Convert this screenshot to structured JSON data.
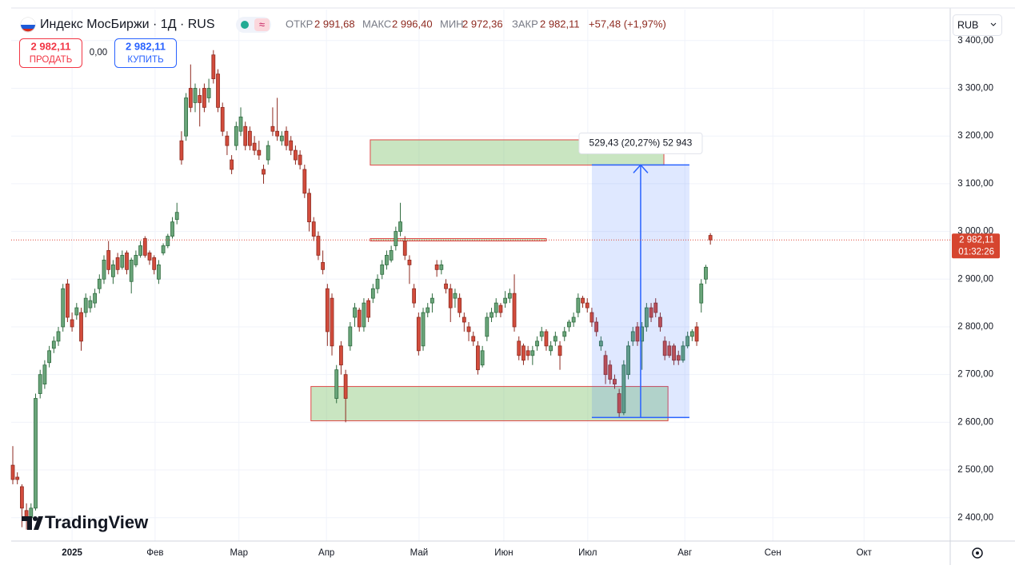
{
  "header": {
    "symbol": "Индекс МосБиржи · 1Д · RUS",
    "open_label": "ОТКР",
    "open": "2 991,68",
    "high_label": "МАКС",
    "high": "2 996,40",
    "low_label": "МИН",
    "low": "2 972,36",
    "close_label": "ЗАКР",
    "close": "2 982,11",
    "change": "+57,48 (+1,97%)"
  },
  "trade": {
    "sell_price": "2 982,11",
    "sell": "ПРОДАТЬ",
    "spread": "0,00",
    "buy_price": "2 982,11",
    "buy": "КУПИТЬ"
  },
  "currency": "RUB",
  "logo": "TradingView",
  "chart_data": {
    "type": "candlestick",
    "up_color": "#6aa57a",
    "up_border": "#2f6b3f",
    "down_color": "#d24c3c",
    "down_border": "#8e2a20",
    "ohlc": [
      [
        2510,
        2550,
        2470,
        2480
      ],
      [
        2485,
        2495,
        2470,
        2480
      ],
      [
        2465,
        2470,
        2380,
        2420
      ],
      [
        2415,
        2430,
        2375,
        2395
      ],
      [
        2400,
        2430,
        2390,
        2420
      ],
      [
        2420,
        2660,
        2415,
        2650
      ],
      [
        2660,
        2710,
        2650,
        2700
      ],
      [
        2680,
        2730,
        2670,
        2720
      ],
      [
        2725,
        2760,
        2715,
        2750
      ],
      [
        2755,
        2780,
        2745,
        2770
      ],
      [
        2770,
        2800,
        2760,
        2790
      ],
      [
        2800,
        2890,
        2790,
        2880
      ],
      [
        2890,
        2900,
        2810,
        2820
      ],
      [
        2815,
        2830,
        2790,
        2800
      ],
      [
        2825,
        2850,
        2815,
        2840
      ],
      [
        2830,
        2840,
        2750,
        2770
      ],
      [
        2830,
        2870,
        2820,
        2860
      ],
      [
        2840,
        2865,
        2830,
        2855
      ],
      [
        2850,
        2880,
        2840,
        2870
      ],
      [
        2880,
        2910,
        2870,
        2900
      ],
      [
        2900,
        2950,
        2890,
        2940
      ],
      [
        2960,
        2980,
        2910,
        2920
      ],
      [
        2905,
        2940,
        2890,
        2930
      ],
      [
        2945,
        2955,
        2910,
        2920
      ],
      [
        2925,
        2960,
        2920,
        2950
      ],
      [
        2955,
        2960,
        2910,
        2920
      ],
      [
        2895,
        2945,
        2870,
        2940
      ],
      [
        2930,
        2960,
        2925,
        2950
      ],
      [
        2950,
        2980,
        2945,
        2970
      ],
      [
        2985,
        2990,
        2945,
        2950
      ],
      [
        2955,
        2960,
        2930,
        2940
      ],
      [
        2945,
        2950,
        2910,
        2920
      ],
      [
        2900,
        2940,
        2890,
        2930
      ],
      [
        2955,
        2975,
        2950,
        2970
      ],
      [
        2970,
        2995,
        2965,
        2990
      ],
      [
        2990,
        3030,
        2985,
        3020
      ],
      [
        3025,
        3060,
        3015,
        3040
      ],
      [
        3190,
        3210,
        3140,
        3150
      ],
      [
        3200,
        3290,
        3190,
        3280
      ],
      [
        3300,
        3350,
        3250,
        3260
      ],
      [
        3270,
        3310,
        3250,
        3300
      ],
      [
        3285,
        3300,
        3220,
        3270
      ],
      [
        3300,
        3310,
        3250,
        3260
      ],
      [
        3280,
        3320,
        3270,
        3300
      ],
      [
        3370,
        3380,
        3310,
        3320
      ],
      [
        3330,
        3340,
        3250,
        3260
      ],
      [
        3260,
        3270,
        3200,
        3210
      ],
      [
        3200,
        3210,
        3160,
        3180
      ],
      [
        3150,
        3160,
        3120,
        3130
      ],
      [
        3180,
        3230,
        3170,
        3220
      ],
      [
        3210,
        3260,
        3200,
        3240
      ],
      [
        3220,
        3230,
        3170,
        3180
      ],
      [
        3210,
        3220,
        3170,
        3180
      ],
      [
        3185,
        3200,
        3160,
        3170
      ],
      [
        3170,
        3190,
        3150,
        3160
      ],
      [
        3130,
        3140,
        3100,
        3120
      ],
      [
        3150,
        3190,
        3140,
        3180
      ],
      [
        3220,
        3260,
        3200,
        3210
      ],
      [
        3210,
        3280,
        3190,
        3200
      ],
      [
        3190,
        3210,
        3180,
        3200
      ],
      [
        3210,
        3220,
        3170,
        3180
      ],
      [
        3190,
        3200,
        3160,
        3170
      ],
      [
        3170,
        3180,
        3140,
        3150
      ],
      [
        3160,
        3170,
        3130,
        3140
      ],
      [
        3130,
        3140,
        3070,
        3080
      ],
      [
        3080,
        3090,
        3000,
        3020
      ],
      [
        3020,
        3030,
        2980,
        2990
      ],
      [
        2990,
        3000,
        2940,
        2950
      ],
      [
        2935,
        2960,
        2910,
        2920
      ],
      [
        2880,
        2890,
        2760,
        2790
      ],
      [
        2860,
        2870,
        2740,
        2760
      ],
      [
        2650,
        2720,
        2640,
        2710
      ],
      [
        2760,
        2770,
        2700,
        2720
      ],
      [
        2700,
        2710,
        2600,
        2650
      ],
      [
        2760,
        2810,
        2750,
        2800
      ],
      [
        2820,
        2850,
        2800,
        2840
      ],
      [
        2835,
        2840,
        2790,
        2800
      ],
      [
        2800,
        2860,
        2790,
        2850
      ],
      [
        2855,
        2860,
        2810,
        2820
      ],
      [
        2860,
        2890,
        2850,
        2880
      ],
      [
        2880,
        2910,
        2870,
        2900
      ],
      [
        2910,
        2940,
        2900,
        2930
      ],
      [
        2930,
        2960,
        2920,
        2950
      ],
      [
        2940,
        2970,
        2935,
        2960
      ],
      [
        2970,
        3010,
        2960,
        3000
      ],
      [
        3000,
        3060,
        2990,
        3020
      ],
      [
        2980,
        2990,
        2940,
        2950
      ],
      [
        2940,
        2950,
        2890,
        2930
      ],
      [
        2880,
        2890,
        2840,
        2850
      ],
      [
        2820,
        2830,
        2740,
        2750
      ],
      [
        2760,
        2840,
        2750,
        2830
      ],
      [
        2830,
        2850,
        2820,
        2840
      ],
      [
        2850,
        2870,
        2830,
        2860
      ],
      [
        2930,
        2940,
        2905,
        2920
      ],
      [
        2920,
        2940,
        2910,
        2930
      ],
      [
        2890,
        2900,
        2870,
        2880
      ],
      [
        2880,
        2890,
        2810,
        2840
      ],
      [
        2860,
        2880,
        2840,
        2870
      ],
      [
        2860,
        2870,
        2820,
        2830
      ],
      [
        2820,
        2830,
        2790,
        2810
      ],
      [
        2800,
        2810,
        2770,
        2790
      ],
      [
        2780,
        2790,
        2760,
        2770
      ],
      [
        2760,
        2770,
        2700,
        2710
      ],
      [
        2720,
        2760,
        2715,
        2750
      ],
      [
        2780,
        2830,
        2770,
        2820
      ],
      [
        2820,
        2840,
        2810,
        2830
      ],
      [
        2830,
        2860,
        2820,
        2850
      ],
      [
        2845,
        2850,
        2820,
        2830
      ],
      [
        2850,
        2875,
        2840,
        2860
      ],
      [
        2860,
        2880,
        2850,
        2870
      ],
      [
        2870,
        2910,
        2790,
        2800
      ],
      [
        2770,
        2780,
        2730,
        2740
      ],
      [
        2760,
        2765,
        2720,
        2730
      ],
      [
        2750,
        2760,
        2730,
        2740
      ],
      [
        2740,
        2760,
        2720,
        2750
      ],
      [
        2760,
        2780,
        2750,
        2770
      ],
      [
        2780,
        2800,
        2770,
        2790
      ],
      [
        2790,
        2795,
        2750,
        2760
      ],
      [
        2750,
        2770,
        2740,
        2760
      ],
      [
        2770,
        2790,
        2760,
        2780
      ],
      [
        2760,
        2770,
        2710,
        2740
      ],
      [
        2780,
        2800,
        2770,
        2790
      ],
      [
        2800,
        2815,
        2790,
        2810
      ],
      [
        2810,
        2830,
        2800,
        2820
      ],
      [
        2830,
        2870,
        2820,
        2860
      ],
      [
        2860,
        2865,
        2840,
        2850
      ],
      [
        2850,
        2860,
        2830,
        2840
      ],
      [
        2830,
        2840,
        2800,
        2810
      ],
      [
        2810,
        2820,
        2780,
        2790
      ],
      [
        2760,
        2780,
        2750,
        2770
      ],
      [
        2740,
        2750,
        2680,
        2700
      ],
      [
        2720,
        2730,
        2680,
        2690
      ],
      [
        2690,
        2700,
        2670,
        2680
      ],
      [
        2660,
        2670,
        2610,
        2620
      ],
      [
        2620,
        2730,
        2615,
        2720
      ],
      [
        2700,
        2770,
        2690,
        2760
      ],
      [
        2770,
        2800,
        2760,
        2790
      ],
      [
        2800,
        2810,
        2760,
        2770
      ],
      [
        2770,
        2810,
        2710,
        2800
      ],
      [
        2800,
        2850,
        2790,
        2840
      ],
      [
        2840,
        2850,
        2810,
        2820
      ],
      [
        2850,
        2860,
        2820,
        2830
      ],
      [
        2820,
        2830,
        2790,
        2800
      ],
      [
        2770,
        2780,
        2730,
        2740
      ],
      [
        2760,
        2770,
        2735,
        2740
      ],
      [
        2760,
        2765,
        2720,
        2730
      ],
      [
        2740,
        2750,
        2720,
        2730
      ],
      [
        2730,
        2770,
        2725,
        2760
      ],
      [
        2760,
        2790,
        2755,
        2780
      ],
      [
        2780,
        2795,
        2770,
        2790
      ],
      [
        2800,
        2810,
        2760,
        2770
      ],
      [
        2850,
        2900,
        2830,
        2890
      ],
      [
        2900,
        2930,
        2890,
        2925
      ],
      [
        2991.68,
        2996.4,
        2972.36,
        2982.11
      ]
    ],
    "xlim": [
      -0.35,
      205.6
    ],
    "xticks": [
      {
        "value": 13.0,
        "label": "2025"
      },
      {
        "value": 31.2,
        "label": "Фев"
      },
      {
        "value": 49.6,
        "label": "Мар"
      },
      {
        "value": 68.8,
        "label": "Апр"
      },
      {
        "value": 89.1,
        "label": "Май"
      },
      {
        "value": 107.7,
        "label": "Июн"
      },
      {
        "value": 126.1,
        "label": "Июл"
      },
      {
        "value": 147.4,
        "label": "Авг"
      },
      {
        "value": 166.7,
        "label": "Сен"
      },
      {
        "value": 186.7,
        "label": "Окт"
      }
    ],
    "ylim": [
      2351,
      3465
    ],
    "yticks": [
      {
        "value": 2400,
        "label": "2 400,00"
      },
      {
        "value": 2500,
        "label": "2 500,00"
      },
      {
        "value": 2600,
        "label": "2 600,00"
      },
      {
        "value": 2700,
        "label": "2 700,00"
      },
      {
        "value": 2800,
        "label": "2 800,00"
      },
      {
        "value": 2900,
        "label": "2 900,00"
      },
      {
        "value": 3000,
        "label": "3 000,00"
      },
      {
        "value": 3100,
        "label": "3 100,00"
      },
      {
        "value": 3200,
        "label": "3 200,00"
      },
      {
        "value": 3300,
        "label": "3 300,00"
      },
      {
        "value": 3400,
        "label": "3 400,00"
      }
    ],
    "grid": true,
    "last_price": {
      "value": 2982.11,
      "label": "2 982,11"
    },
    "countdown": "01:32:26",
    "zones": [
      {
        "x": [
          78.4,
          142.8
        ],
        "y": [
          3139,
          3192
        ]
      },
      {
        "x": [
          65.4,
          143.7
        ],
        "y": [
          2603,
          2675
        ]
      },
      {
        "x": [
          78.4,
          117.0
        ],
        "y": [
          2980,
          2985
        ]
      }
    ],
    "measure": {
      "x": [
        127.0,
        148.4
      ],
      "y": [
        2610,
        3139.43
      ],
      "label": "529,43 (20,27%) 52 943"
    }
  }
}
